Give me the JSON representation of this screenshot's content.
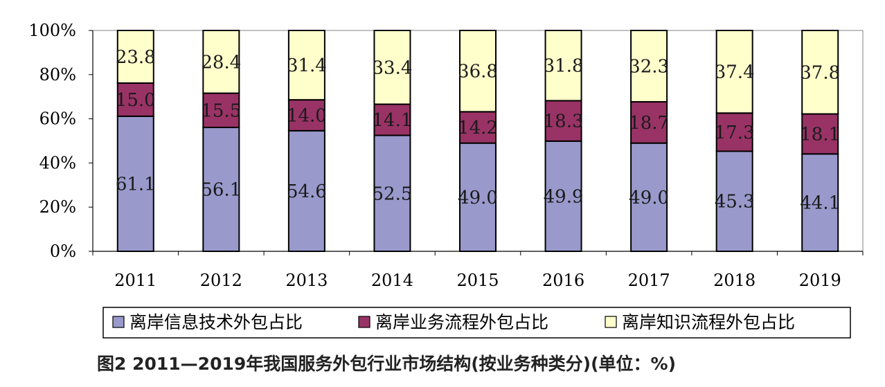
{
  "chart_data": {
    "type": "bar",
    "stacked": true,
    "percent": true,
    "categories": [
      "2011",
      "2012",
      "2013",
      "2014",
      "2015",
      "2016",
      "2017",
      "2018",
      "2019"
    ],
    "series": [
      {
        "name": "离岸信息技术外包占比",
        "color": "#9999cc",
        "values": [
          61.1,
          56.1,
          54.6,
          52.5,
          49.0,
          49.9,
          49.0,
          45.3,
          44.1
        ],
        "labels": [
          "61.1",
          "56.1",
          "54.6",
          "52.5",
          "49.0",
          "49.9",
          "49.0",
          "45.3",
          "44.1"
        ]
      },
      {
        "name": "离岸业务流程外包占比",
        "color": "#993366",
        "values": [
          15.0,
          15.5,
          14.0,
          14.1,
          14.2,
          18.3,
          18.7,
          17.3,
          18.1
        ],
        "labels": [
          "15.0",
          "15.5",
          "14.0",
          "14.1",
          "14.2",
          "18.3",
          "18.7",
          "17.3",
          "18.1"
        ]
      },
      {
        "name": "离岸知识流程外包占比",
        "color": "#ffffcc",
        "values": [
          23.8,
          28.4,
          31.4,
          33.4,
          36.8,
          31.8,
          32.3,
          37.4,
          37.8
        ],
        "labels": [
          "23.8",
          "28.4",
          "31.4",
          "33.4",
          "36.8",
          "31.8",
          "32.3",
          "37.4",
          "37.8"
        ]
      }
    ],
    "y_ticks": [
      "0%",
      "20%",
      "40%",
      "60%",
      "80%",
      "100%"
    ],
    "ylim": [
      0,
      100
    ],
    "grid": false,
    "legend_position": "bottom",
    "caption": "图2 2011—2019年我国服务外包行业市场结构(按业务种类分)(单位：%)"
  }
}
